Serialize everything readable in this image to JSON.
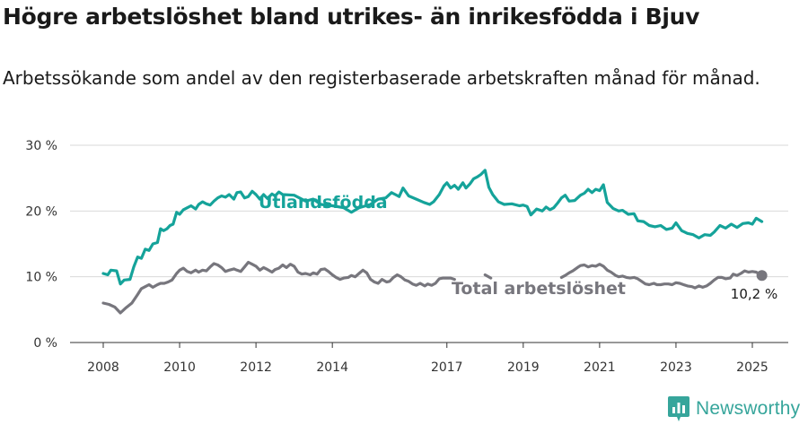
{
  "title": "Högre arbetslöshet bland utrikes- än inrikesfödda i Bjuv",
  "subtitle": "Arbetssökande som andel av den registerbaserade arbetskraften månad för månad.",
  "brand": {
    "name": "Newsworthy",
    "icon": "newsworthy-logo-icon",
    "color": "#36a59b"
  },
  "chart_data": {
    "type": "line",
    "title": "Högre arbetslöshet bland utrikes- än inrikesfödda i Bjuv",
    "subtitle": "Arbetssökande som andel av den registerbaserade arbetskraften månad för månad.",
    "xlabel": "",
    "ylabel": "",
    "ylim": [
      0,
      30
    ],
    "y_ticks": [
      0,
      10,
      20,
      30
    ],
    "y_tick_labels": [
      "0 %",
      "10 %",
      "20 %",
      "30 %"
    ],
    "x_ticks": [
      2008,
      2010,
      2012,
      2014,
      2017,
      2019,
      2021,
      2023,
      2025
    ],
    "x_tick_labels": [
      "2008",
      "2010",
      "2012",
      "2014",
      "2017",
      "2019",
      "2021",
      "2023",
      "2025"
    ],
    "grid": true,
    "end_label": "10,2 %",
    "series": [
      {
        "name": "Utlandsfödda",
        "color": "#15a39a",
        "x": [
          2008.0,
          2008.12,
          2008.2,
          2008.35,
          2008.45,
          2008.55,
          2008.7,
          2008.8,
          2008.9,
          2009.0,
          2009.1,
          2009.2,
          2009.3,
          2009.42,
          2009.5,
          2009.58,
          2009.67,
          2009.75,
          2009.83,
          2009.92,
          2010.0,
          2010.1,
          2010.2,
          2010.3,
          2010.42,
          2010.5,
          2010.6,
          2010.7,
          2010.8,
          2010.9,
          2011.0,
          2011.1,
          2011.2,
          2011.3,
          2011.42,
          2011.5,
          2011.6,
          2011.7,
          2011.8,
          2011.9,
          2012.0,
          2012.1,
          2012.2,
          2012.3,
          2012.42,
          2012.5,
          2012.6,
          2012.7,
          2013.0,
          2013.3,
          2013.5,
          2013.7,
          2014.0,
          2014.3,
          2014.5,
          2014.7,
          2015.0,
          2015.2,
          2015.4,
          2015.55,
          2015.65,
          2015.75,
          2015.85,
          2016.0,
          2016.2,
          2016.4,
          2016.55,
          2016.65,
          2016.8,
          2016.92,
          2017.0,
          2017.1,
          2017.2,
          2017.3,
          2017.42,
          2017.5,
          2017.6,
          2017.7,
          2017.8,
          2017.9,
          2018.0,
          2018.1,
          2018.2,
          2018.35,
          2018.5,
          2018.7,
          2018.9,
          2019.0,
          2019.1,
          2019.2,
          2019.35,
          2019.5,
          2019.6,
          2019.7,
          2019.8,
          2019.9,
          2020.0,
          2020.1,
          2020.2,
          2020.35,
          2020.5,
          2020.6,
          2020.7,
          2020.8,
          2020.9,
          2021.0,
          2021.1,
          2021.2,
          2021.35,
          2021.5,
          2021.6,
          2021.75,
          2021.9,
          2022.0,
          2022.15,
          2022.3,
          2022.45,
          2022.6,
          2022.75,
          2022.9,
          2023.0,
          2023.15,
          2023.3,
          2023.45,
          2023.6,
          2023.75,
          2023.9,
          2024.0,
          2024.15,
          2024.3,
          2024.45,
          2024.6,
          2024.75,
          2024.9,
          2025.0,
          2025.1,
          2025.25
        ],
        "values": [
          10.5,
          10.3,
          11.0,
          10.9,
          8.9,
          9.5,
          9.6,
          11.5,
          13.0,
          12.8,
          14.2,
          14.0,
          15.0,
          15.2,
          17.3,
          17.0,
          17.3,
          17.8,
          18.0,
          19.8,
          19.5,
          20.2,
          20.5,
          20.8,
          20.3,
          21.0,
          21.4,
          21.1,
          20.9,
          21.5,
          22.0,
          22.3,
          22.1,
          22.5,
          21.8,
          22.8,
          22.9,
          22.0,
          22.2,
          23.0,
          22.5,
          21.8,
          22.5,
          21.9,
          22.6,
          22.3,
          22.9,
          22.5,
          22.4,
          21.5,
          21.8,
          21.0,
          20.8,
          20.5,
          19.8,
          20.5,
          21.0,
          21.8,
          22.0,
          22.8,
          22.5,
          22.2,
          23.5,
          22.3,
          21.8,
          21.3,
          21.0,
          21.4,
          22.5,
          23.8,
          24.3,
          23.5,
          23.9,
          23.3,
          24.3,
          23.5,
          24.1,
          24.9,
          25.2,
          25.6,
          26.2,
          23.6,
          22.5,
          21.4,
          21.0,
          21.1,
          20.8,
          20.9,
          20.7,
          19.4,
          20.3,
          20.0,
          20.6,
          20.2,
          20.5,
          21.2,
          22.0,
          22.4,
          21.5,
          21.6,
          22.4,
          22.7,
          23.3,
          22.8,
          23.3,
          23.1,
          24.0,
          21.3,
          20.4,
          20.0,
          20.1,
          19.5,
          19.6,
          18.5,
          18.4,
          17.8,
          17.6,
          17.8,
          17.2,
          17.4,
          18.2,
          17.0,
          16.6,
          16.4,
          15.9,
          16.4,
          16.3,
          16.8,
          17.8,
          17.4,
          18.0,
          17.5,
          18.1,
          18.2,
          18.0,
          18.9,
          18.4
        ],
        "gaps": [
          [
            2012.78,
            2013.18
          ],
          [
            2014.7,
            2015.55
          ]
        ]
      },
      {
        "name": "Total arbetslöshet",
        "color": "#77767d",
        "x": [
          2008.0,
          2008.15,
          2008.3,
          2008.45,
          2008.6,
          2008.75,
          2008.9,
          2009.0,
          2009.1,
          2009.2,
          2009.3,
          2009.42,
          2009.5,
          2009.6,
          2009.7,
          2009.8,
          2009.92,
          2010.0,
          2010.1,
          2010.2,
          2010.3,
          2010.42,
          2010.5,
          2010.6,
          2010.7,
          2010.8,
          2010.9,
          2011.0,
          2011.1,
          2011.2,
          2011.3,
          2011.42,
          2011.5,
          2011.6,
          2011.7,
          2011.8,
          2011.9,
          2012.0,
          2012.1,
          2012.2,
          2012.3,
          2012.42,
          2012.5,
          2012.6,
          2012.7,
          2012.8,
          2012.9,
          2013.0,
          2013.1,
          2013.2,
          2013.3,
          2013.42,
          2013.5,
          2013.6,
          2013.7,
          2013.8,
          2013.9,
          2014.0,
          2014.1,
          2014.2,
          2014.3,
          2014.42,
          2014.5,
          2014.6,
          2014.7,
          2014.8,
          2014.9,
          2015.0,
          2015.1,
          2015.2,
          2015.3,
          2015.42,
          2015.5,
          2015.6,
          2015.7,
          2015.8,
          2015.9,
          2016.0,
          2016.1,
          2016.2,
          2016.3,
          2016.42,
          2016.5,
          2016.6,
          2016.7,
          2016.8,
          2016.9,
          2017.0,
          2017.1,
          2017.2,
          2018.0,
          2018.15,
          2020.0,
          2020.1,
          2020.2,
          2020.3,
          2020.42,
          2020.5,
          2020.6,
          2020.7,
          2020.8,
          2020.9,
          2021.0,
          2021.1,
          2021.2,
          2021.3,
          2021.42,
          2021.5,
          2021.6,
          2021.7,
          2021.8,
          2021.9,
          2022.0,
          2022.1,
          2022.2,
          2022.3,
          2022.42,
          2022.5,
          2022.6,
          2022.7,
          2022.8,
          2022.9,
          2023.0,
          2023.1,
          2023.2,
          2023.3,
          2023.42,
          2023.5,
          2023.6,
          2023.7,
          2023.8,
          2023.9,
          2024.0,
          2024.1,
          2024.2,
          2024.3,
          2024.42,
          2024.5,
          2024.6,
          2024.7,
          2024.8,
          2024.9,
          2025.0,
          2025.1,
          2025.25
        ],
        "values": [
          6.0,
          5.8,
          5.4,
          4.5,
          5.3,
          6.0,
          7.3,
          8.2,
          8.5,
          8.8,
          8.4,
          8.8,
          9.0,
          9.0,
          9.2,
          9.5,
          10.5,
          11.0,
          11.3,
          10.8,
          10.6,
          11.0,
          10.7,
          11.0,
          10.9,
          11.5,
          12.0,
          11.8,
          11.4,
          10.8,
          11.0,
          11.2,
          11.0,
          10.8,
          11.5,
          12.2,
          11.9,
          11.6,
          11.0,
          11.4,
          11.1,
          10.7,
          11.1,
          11.3,
          11.8,
          11.4,
          11.9,
          11.6,
          10.7,
          10.4,
          10.5,
          10.3,
          10.6,
          10.4,
          11.1,
          11.2,
          10.8,
          10.3,
          9.9,
          9.6,
          9.8,
          9.9,
          10.2,
          10.0,
          10.5,
          11.0,
          10.6,
          9.6,
          9.2,
          9.0,
          9.6,
          9.2,
          9.3,
          9.9,
          10.3,
          10.0,
          9.5,
          9.3,
          8.9,
          8.7,
          9.0,
          8.6,
          8.9,
          8.7,
          9.0,
          9.7,
          9.8,
          9.8,
          9.8,
          9.6,
          10.3,
          9.8,
          9.9,
          10.2,
          10.6,
          10.9,
          11.4,
          11.7,
          11.8,
          11.5,
          11.7,
          11.6,
          11.9,
          11.6,
          11.0,
          10.7,
          10.2,
          10.0,
          10.1,
          9.9,
          9.8,
          9.9,
          9.7,
          9.3,
          8.9,
          8.8,
          9.0,
          8.8,
          8.8,
          8.9,
          8.9,
          8.8,
          9.1,
          9.0,
          8.8,
          8.6,
          8.5,
          8.3,
          8.6,
          8.4,
          8.6,
          9.0,
          9.5,
          9.9,
          9.9,
          9.7,
          9.8,
          10.4,
          10.2,
          10.5,
          10.9,
          10.7,
          10.8,
          10.7,
          10.2
        ],
        "gaps": [
          [
            2017.2,
            2018.0
          ],
          [
            2018.15,
            2020.0
          ]
        ]
      }
    ]
  }
}
